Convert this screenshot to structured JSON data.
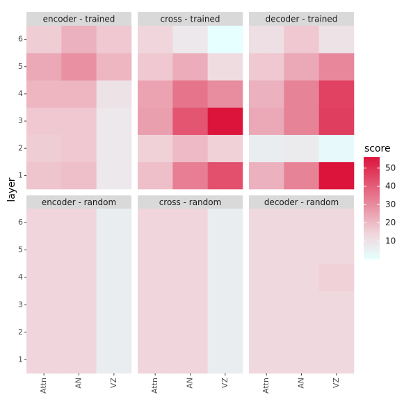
{
  "chart_data": {
    "type": "heatmap",
    "ylabel": "layer",
    "x_categories": [
      "Attn",
      "AN",
      "VZ"
    ],
    "y_categories": [
      1,
      2,
      3,
      4,
      5,
      6
    ],
    "legend": {
      "title": "score",
      "ticks": [
        10,
        20,
        30,
        40,
        50
      ],
      "range": [
        0,
        56
      ],
      "placement": "right"
    },
    "colors": {
      "low": "#e6ffff",
      "mid": "#f0d6dc",
      "high": "#dc143c",
      "panel_bg": "#ebebeb",
      "strip_bg": "#d9d9d9"
    },
    "panels": [
      {
        "label": "encoder - trained",
        "values": [
          [
            18,
            19,
            8
          ],
          [
            16,
            17,
            8
          ],
          [
            17,
            17,
            8
          ],
          [
            21,
            21,
            10
          ],
          [
            24,
            29,
            21
          ],
          [
            16,
            22,
            17
          ]
        ]
      },
      {
        "label": "cross - trained",
        "values": [
          [
            19,
            33,
            43
          ],
          [
            15,
            20,
            15
          ],
          [
            26,
            42,
            56
          ],
          [
            25,
            35,
            30
          ],
          [
            17,
            23,
            12
          ],
          [
            14,
            8,
            0
          ]
        ]
      },
      {
        "label": "decoder - trained",
        "values": [
          [
            22,
            32,
            56
          ],
          [
            6,
            7,
            2
          ],
          [
            24,
            32,
            47
          ],
          [
            22,
            32,
            46
          ],
          [
            17,
            24,
            31
          ],
          [
            11,
            17,
            10
          ]
        ]
      },
      {
        "label": "encoder - random",
        "values": [
          [
            14,
            14,
            6
          ],
          [
            14,
            14,
            6
          ],
          [
            14,
            14,
            6
          ],
          [
            14,
            14,
            6
          ],
          [
            14,
            14,
            6
          ],
          [
            14,
            14,
            6
          ]
        ]
      },
      {
        "label": "cross - random",
        "values": [
          [
            14,
            14,
            6
          ],
          [
            14,
            14,
            6
          ],
          [
            14,
            14,
            6
          ],
          [
            14,
            14,
            6
          ],
          [
            14,
            14,
            6
          ],
          [
            14,
            14,
            6
          ]
        ]
      },
      {
        "label": "decoder - random",
        "values": [
          [
            13,
            13,
            13
          ],
          [
            13,
            13,
            13
          ],
          [
            13,
            13,
            13
          ],
          [
            13,
            13,
            15
          ],
          [
            13,
            13,
            13
          ],
          [
            13,
            13,
            13
          ]
        ]
      }
    ]
  }
}
